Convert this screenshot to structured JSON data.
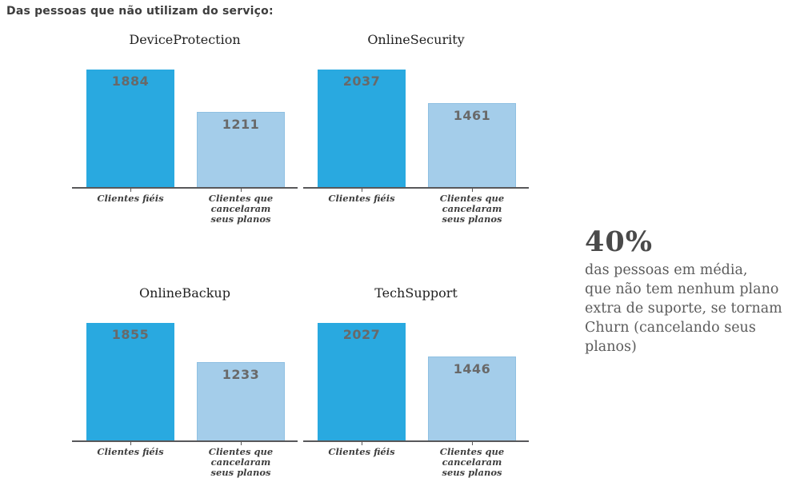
{
  "page_title": "Das pessoas que não utilizam do serviço:",
  "colors": {
    "loyal_bar": "#29a9e0",
    "churn_bar": "#a4cdea",
    "axis_line": "#58585a",
    "value_label": "#696969",
    "annotation_text": "#5c5c5c"
  },
  "chart_data": [
    {
      "type": "bar",
      "title": "DeviceProtection",
      "categories": [
        "Clientes fiéis",
        "Clientes que cancelaram\nseus planos"
      ],
      "values": [
        1884,
        1211
      ],
      "ylim": [
        0,
        1978
      ],
      "grid": false,
      "legend": "none"
    },
    {
      "type": "bar",
      "title": "OnlineSecurity",
      "categories": [
        "Clientes fiéis",
        "Clientes que cancelaram\nseus planos"
      ],
      "values": [
        2037,
        1461
      ],
      "ylim": [
        0,
        2139
      ],
      "grid": false,
      "legend": "none"
    },
    {
      "type": "bar",
      "title": "OnlineBackup",
      "categories": [
        "Clientes fiéis",
        "Clientes que cancelaram\nseus planos"
      ],
      "values": [
        1855,
        1233
      ],
      "ylim": [
        0,
        1948
      ],
      "grid": false,
      "legend": "none"
    },
    {
      "type": "bar",
      "title": "TechSupport",
      "categories": [
        "Clientes fiéis",
        "Clientes que cancelaram\nseus planos"
      ],
      "values": [
        2027,
        1446
      ],
      "ylim": [
        0,
        2128
      ],
      "grid": false,
      "legend": "none"
    }
  ],
  "annotation": {
    "headline": "40%",
    "body": "das pessoas em média,\nque não tem nenhum plano\nextra de suporte, se tornam\nChurn (cancelando seus planos)"
  }
}
